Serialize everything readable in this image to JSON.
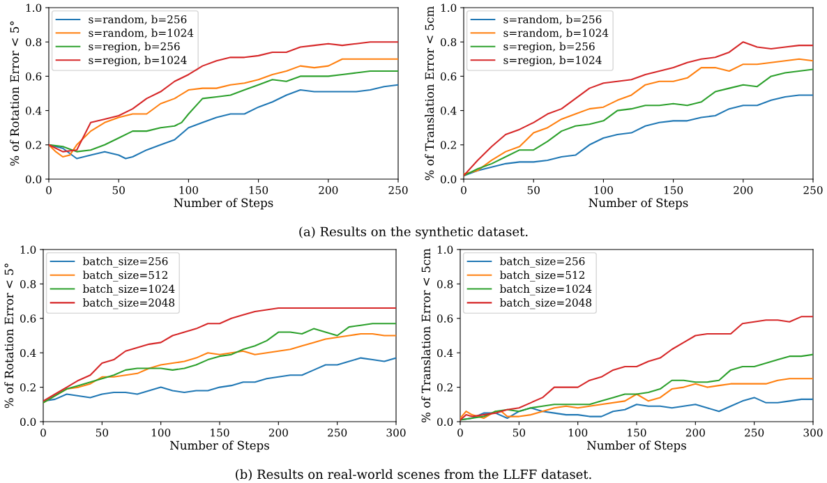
{
  "chart_data": [
    {
      "type": "line",
      "xlabel": "Number of Steps",
      "ylabel": "% of Rotation Error < 5°",
      "xlim": [
        0,
        250
      ],
      "ylim": [
        0,
        1
      ],
      "xticks": [
        0,
        50,
        100,
        150,
        200,
        250
      ],
      "yticks": [
        {
          "value": 0,
          "label": "0.0"
        },
        {
          "value": 0.2,
          "label": "0.2"
        },
        {
          "value": 0.4,
          "label": "0.4"
        },
        {
          "value": 0.6,
          "label": "0.6"
        },
        {
          "value": 0.8,
          "label": "0.8"
        },
        {
          "value": 1,
          "label": "1.0"
        }
      ],
      "legend": "top left",
      "grid": false,
      "annotations": [
        "(a) Results on the synthetic dataset."
      ],
      "series": [
        {
          "name": "s=random, b=256",
          "color": "#1f77b4",
          "x": [
            0,
            10,
            20,
            30,
            40,
            50,
            55,
            60,
            70,
            80,
            90,
            100,
            110,
            120,
            130,
            140,
            150,
            160,
            170,
            180,
            190,
            200,
            210,
            220,
            230,
            240,
            250
          ],
          "values": [
            0.2,
            0.18,
            0.12,
            0.14,
            0.16,
            0.14,
            0.12,
            0.13,
            0.17,
            0.2,
            0.23,
            0.3,
            0.33,
            0.36,
            0.38,
            0.38,
            0.42,
            0.45,
            0.49,
            0.52,
            0.51,
            0.51,
            0.51,
            0.51,
            0.52,
            0.54,
            0.55
          ]
        },
        {
          "name": "s=random, b=1024",
          "color": "#ff7f0e",
          "x": [
            0,
            5,
            10,
            15,
            20,
            30,
            40,
            50,
            60,
            70,
            80,
            90,
            100,
            110,
            120,
            130,
            140,
            150,
            160,
            170,
            180,
            190,
            200,
            210,
            220,
            250
          ],
          "values": [
            0.2,
            0.16,
            0.13,
            0.14,
            0.2,
            0.28,
            0.33,
            0.36,
            0.38,
            0.38,
            0.44,
            0.47,
            0.52,
            0.53,
            0.53,
            0.55,
            0.56,
            0.58,
            0.61,
            0.63,
            0.66,
            0.65,
            0.66,
            0.7,
            0.7,
            0.7
          ]
        },
        {
          "name": "s=region, b=256",
          "color": "#2ca02c",
          "x": [
            0,
            10,
            20,
            30,
            40,
            50,
            60,
            70,
            80,
            90,
            95,
            100,
            110,
            120,
            130,
            140,
            150,
            160,
            170,
            180,
            190,
            200,
            210,
            220,
            230,
            250
          ],
          "values": [
            0.2,
            0.19,
            0.16,
            0.17,
            0.2,
            0.24,
            0.28,
            0.28,
            0.3,
            0.31,
            0.33,
            0.38,
            0.47,
            0.48,
            0.49,
            0.52,
            0.55,
            0.58,
            0.57,
            0.6,
            0.6,
            0.6,
            0.61,
            0.62,
            0.63,
            0.63
          ]
        },
        {
          "name": "s=region, b=1024",
          "color": "#d62728",
          "x": [
            0,
            10,
            20,
            30,
            40,
            50,
            60,
            70,
            80,
            90,
            100,
            110,
            120,
            130,
            140,
            150,
            160,
            170,
            180,
            190,
            200,
            210,
            220,
            230,
            240,
            250
          ],
          "values": [
            0.2,
            0.16,
            0.17,
            0.33,
            0.35,
            0.37,
            0.41,
            0.47,
            0.51,
            0.57,
            0.61,
            0.66,
            0.69,
            0.71,
            0.71,
            0.72,
            0.74,
            0.74,
            0.77,
            0.78,
            0.79,
            0.78,
            0.79,
            0.8,
            0.8,
            0.8
          ]
        }
      ]
    },
    {
      "type": "line",
      "xlabel": "Number of Steps",
      "ylabel": "% of Translation Error < 5cm",
      "xlim": [
        0,
        250
      ],
      "ylim": [
        0,
        1
      ],
      "xticks": [
        0,
        50,
        100,
        150,
        200,
        250
      ],
      "yticks": [
        {
          "value": 0,
          "label": "0.0"
        },
        {
          "value": 0.2,
          "label": "0.2"
        },
        {
          "value": 0.4,
          "label": "0.4"
        },
        {
          "value": 0.6,
          "label": "0.6"
        },
        {
          "value": 0.8,
          "label": "0.8"
        },
        {
          "value": 1,
          "label": "1.0"
        }
      ],
      "legend": "top left",
      "grid": false,
      "series": [
        {
          "name": "s=random, b=256",
          "color": "#1f77b4",
          "x": [
            0,
            10,
            20,
            30,
            40,
            50,
            60,
            70,
            80,
            90,
            100,
            110,
            120,
            130,
            140,
            150,
            160,
            170,
            180,
            190,
            200,
            210,
            220,
            230,
            240,
            250
          ],
          "values": [
            0.02,
            0.05,
            0.07,
            0.09,
            0.1,
            0.1,
            0.11,
            0.13,
            0.14,
            0.2,
            0.24,
            0.26,
            0.27,
            0.31,
            0.33,
            0.34,
            0.34,
            0.36,
            0.37,
            0.41,
            0.43,
            0.43,
            0.46,
            0.48,
            0.49,
            0.49
          ]
        },
        {
          "name": "s=random, b=1024",
          "color": "#ff7f0e",
          "x": [
            0,
            10,
            20,
            30,
            40,
            50,
            60,
            70,
            80,
            90,
            100,
            110,
            120,
            130,
            140,
            150,
            160,
            170,
            180,
            190,
            200,
            210,
            220,
            230,
            240,
            250
          ],
          "values": [
            0.03,
            0.05,
            0.11,
            0.16,
            0.19,
            0.27,
            0.3,
            0.35,
            0.38,
            0.41,
            0.42,
            0.46,
            0.49,
            0.55,
            0.57,
            0.57,
            0.59,
            0.65,
            0.65,
            0.63,
            0.67,
            0.67,
            0.68,
            0.69,
            0.7,
            0.69
          ]
        },
        {
          "name": "s=region, b=256",
          "color": "#2ca02c",
          "x": [
            0,
            10,
            20,
            30,
            40,
            50,
            60,
            70,
            80,
            90,
            100,
            110,
            120,
            130,
            140,
            150,
            160,
            170,
            180,
            190,
            200,
            210,
            220,
            230,
            240,
            250
          ],
          "values": [
            0.02,
            0.06,
            0.09,
            0.13,
            0.17,
            0.17,
            0.22,
            0.28,
            0.31,
            0.32,
            0.34,
            0.4,
            0.41,
            0.43,
            0.43,
            0.44,
            0.43,
            0.45,
            0.51,
            0.53,
            0.55,
            0.54,
            0.6,
            0.62,
            0.63,
            0.64
          ]
        },
        {
          "name": "s=region, b=1024",
          "color": "#d62728",
          "x": [
            0,
            10,
            20,
            30,
            40,
            50,
            60,
            70,
            80,
            90,
            100,
            110,
            120,
            130,
            140,
            150,
            160,
            170,
            180,
            190,
            200,
            210,
            220,
            230,
            240,
            250
          ],
          "values": [
            0.02,
            0.11,
            0.19,
            0.26,
            0.29,
            0.33,
            0.38,
            0.41,
            0.47,
            0.53,
            0.56,
            0.57,
            0.58,
            0.61,
            0.63,
            0.65,
            0.68,
            0.7,
            0.71,
            0.74,
            0.8,
            0.77,
            0.76,
            0.77,
            0.78,
            0.78
          ]
        }
      ]
    },
    {
      "type": "line",
      "xlabel": "Number of Steps",
      "ylabel": "% of Rotation Error < 5°",
      "xlim": [
        0,
        300
      ],
      "ylim": [
        0,
        1
      ],
      "xticks": [
        0,
        50,
        100,
        150,
        200,
        250,
        300
      ],
      "yticks": [
        {
          "value": 0,
          "label": "0.0"
        },
        {
          "value": 0.2,
          "label": "0.2"
        },
        {
          "value": 0.4,
          "label": "0.4"
        },
        {
          "value": 0.6,
          "label": "0.6"
        },
        {
          "value": 0.8,
          "label": "0.8"
        },
        {
          "value": 1,
          "label": "1.0"
        }
      ],
      "legend": "top left",
      "grid": false,
      "annotations": [
        "(b) Results on real-world scenes from the LLFF dataset."
      ],
      "series": [
        {
          "name": "batch_size=256",
          "color": "#1f77b4",
          "x": [
            0,
            10,
            20,
            30,
            40,
            50,
            60,
            70,
            80,
            90,
            100,
            110,
            120,
            130,
            140,
            150,
            160,
            170,
            180,
            190,
            200,
            210,
            220,
            230,
            240,
            250,
            260,
            270,
            280,
            290,
            300
          ],
          "values": [
            0.12,
            0.13,
            0.16,
            0.15,
            0.14,
            0.16,
            0.17,
            0.17,
            0.16,
            0.18,
            0.2,
            0.18,
            0.17,
            0.18,
            0.18,
            0.2,
            0.21,
            0.23,
            0.23,
            0.25,
            0.26,
            0.27,
            0.27,
            0.3,
            0.33,
            0.33,
            0.35,
            0.37,
            0.36,
            0.35,
            0.37
          ]
        },
        {
          "name": "batch_size=512",
          "color": "#ff7f0e",
          "x": [
            0,
            10,
            20,
            30,
            40,
            50,
            60,
            70,
            80,
            90,
            100,
            110,
            120,
            130,
            140,
            150,
            160,
            170,
            180,
            190,
            200,
            210,
            220,
            230,
            240,
            250,
            260,
            270,
            280,
            290,
            300
          ],
          "values": [
            0.11,
            0.15,
            0.19,
            0.2,
            0.22,
            0.26,
            0.26,
            0.27,
            0.28,
            0.31,
            0.33,
            0.34,
            0.35,
            0.37,
            0.4,
            0.39,
            0.4,
            0.41,
            0.39,
            0.4,
            0.41,
            0.42,
            0.44,
            0.46,
            0.48,
            0.49,
            0.5,
            0.51,
            0.51,
            0.5,
            0.5
          ]
        },
        {
          "name": "batch_size=1024",
          "color": "#2ca02c",
          "x": [
            0,
            10,
            20,
            30,
            40,
            50,
            60,
            70,
            80,
            90,
            100,
            110,
            120,
            130,
            140,
            150,
            160,
            170,
            180,
            190,
            200,
            210,
            220,
            230,
            240,
            250,
            260,
            270,
            280,
            290,
            300
          ],
          "values": [
            0.11,
            0.15,
            0.19,
            0.21,
            0.23,
            0.25,
            0.27,
            0.3,
            0.31,
            0.31,
            0.31,
            0.3,
            0.31,
            0.33,
            0.36,
            0.38,
            0.39,
            0.42,
            0.44,
            0.47,
            0.52,
            0.52,
            0.51,
            0.54,
            0.52,
            0.5,
            0.55,
            0.56,
            0.57,
            0.57,
            0.57
          ]
        },
        {
          "name": "batch_size=2048",
          "color": "#d62728",
          "x": [
            0,
            10,
            20,
            30,
            40,
            50,
            60,
            70,
            80,
            90,
            100,
            110,
            120,
            130,
            140,
            150,
            160,
            170,
            180,
            190,
            200,
            210,
            220,
            230,
            300
          ],
          "values": [
            0.12,
            0.16,
            0.2,
            0.24,
            0.27,
            0.34,
            0.36,
            0.41,
            0.43,
            0.45,
            0.46,
            0.5,
            0.52,
            0.54,
            0.57,
            0.57,
            0.6,
            0.62,
            0.64,
            0.65,
            0.66,
            0.66,
            0.66,
            0.66,
            0.66
          ]
        }
      ]
    },
    {
      "type": "line",
      "xlabel": "Number of Steps",
      "ylabel": "% of Translation Error < 5cm",
      "xlim": [
        0,
        300
      ],
      "ylim": [
        0,
        1
      ],
      "xticks": [
        0,
        50,
        100,
        150,
        200,
        250,
        300
      ],
      "yticks": [
        {
          "value": 0,
          "label": "0.0"
        },
        {
          "value": 0.2,
          "label": "0.2"
        },
        {
          "value": 0.4,
          "label": "0.4"
        },
        {
          "value": 0.6,
          "label": "0.6"
        },
        {
          "value": 0.8,
          "label": "0.8"
        },
        {
          "value": 1,
          "label": "1.0"
        }
      ],
      "legend": "top left",
      "grid": false,
      "series": [
        {
          "name": "batch_size=256",
          "color": "#1f77b4",
          "x": [
            0,
            10,
            20,
            30,
            40,
            50,
            60,
            70,
            80,
            90,
            100,
            110,
            120,
            130,
            140,
            150,
            160,
            170,
            180,
            190,
            200,
            210,
            220,
            230,
            240,
            250,
            260,
            270,
            280,
            290,
            300
          ],
          "values": [
            0.01,
            0.02,
            0.05,
            0.05,
            0.02,
            0.06,
            0.08,
            0.06,
            0.05,
            0.04,
            0.04,
            0.03,
            0.03,
            0.06,
            0.07,
            0.1,
            0.09,
            0.09,
            0.08,
            0.09,
            0.1,
            0.08,
            0.06,
            0.09,
            0.12,
            0.14,
            0.11,
            0.11,
            0.12,
            0.13,
            0.13
          ]
        },
        {
          "name": "batch_size=512",
          "color": "#ff7f0e",
          "x": [
            0,
            5,
            10,
            20,
            30,
            35,
            40,
            50,
            60,
            70,
            80,
            90,
            100,
            110,
            120,
            140,
            150,
            160,
            170,
            180,
            190,
            200,
            210,
            220,
            230,
            240,
            250,
            260,
            270,
            280,
            300
          ],
          "values": [
            0.02,
            0.06,
            0.04,
            0.02,
            0.06,
            0.06,
            0.03,
            0.03,
            0.04,
            0.06,
            0.08,
            0.09,
            0.08,
            0.09,
            0.1,
            0.12,
            0.16,
            0.12,
            0.14,
            0.19,
            0.2,
            0.22,
            0.2,
            0.21,
            0.22,
            0.22,
            0.22,
            0.22,
            0.24,
            0.25,
            0.25
          ]
        },
        {
          "name": "batch_size=1024",
          "color": "#2ca02c",
          "x": [
            0,
            10,
            20,
            30,
            40,
            50,
            60,
            70,
            80,
            90,
            100,
            110,
            120,
            130,
            140,
            150,
            160,
            170,
            180,
            190,
            200,
            210,
            220,
            230,
            240,
            250,
            260,
            270,
            280,
            290,
            300
          ],
          "values": [
            0.01,
            0.02,
            0.03,
            0.06,
            0.07,
            0.06,
            0.08,
            0.09,
            0.1,
            0.1,
            0.1,
            0.1,
            0.12,
            0.14,
            0.16,
            0.16,
            0.17,
            0.19,
            0.24,
            0.24,
            0.23,
            0.23,
            0.24,
            0.3,
            0.32,
            0.32,
            0.34,
            0.36,
            0.38,
            0.38,
            0.39
          ]
        },
        {
          "name": "batch_size=2048",
          "color": "#d62728",
          "x": [
            0,
            5,
            10,
            20,
            30,
            40,
            50,
            60,
            70,
            80,
            90,
            100,
            110,
            120,
            130,
            140,
            150,
            160,
            170,
            180,
            190,
            200,
            210,
            220,
            230,
            240,
            250,
            260,
            270,
            280,
            290,
            300
          ],
          "values": [
            0.01,
            0.04,
            0.03,
            0.04,
            0.05,
            0.07,
            0.08,
            0.11,
            0.14,
            0.2,
            0.2,
            0.2,
            0.24,
            0.26,
            0.3,
            0.32,
            0.32,
            0.35,
            0.37,
            0.42,
            0.46,
            0.5,
            0.51,
            0.51,
            0.51,
            0.57,
            0.58,
            0.59,
            0.59,
            0.58,
            0.61,
            0.61
          ]
        }
      ]
    }
  ]
}
